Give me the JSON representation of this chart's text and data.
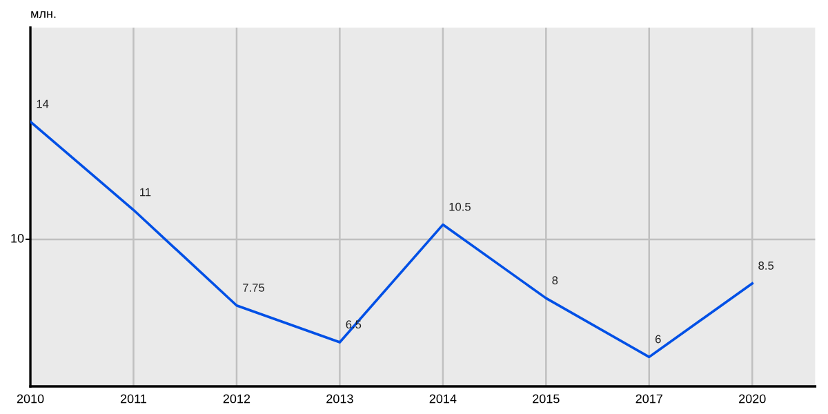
{
  "chart_data": {
    "type": "line",
    "annotations": [
      "млн."
    ],
    "categories": [
      "2010",
      "2011",
      "2012",
      "2013",
      "2014",
      "2015",
      "2017",
      "2020"
    ],
    "series": [
      {
        "color": "#0050e6",
        "values": [
          14,
          11,
          7.75,
          6.5,
          10.5,
          8,
          6,
          8.5
        ]
      }
    ],
    "ylim": [
      5,
      17.2
    ],
    "data_labels": true,
    "ref_lines": [
      {
        "axis": "y",
        "value": 10,
        "label": "10",
        "color": "#c0c0c0"
      }
    ],
    "grid": "x",
    "marker": "none",
    "line_style": "solid"
  }
}
